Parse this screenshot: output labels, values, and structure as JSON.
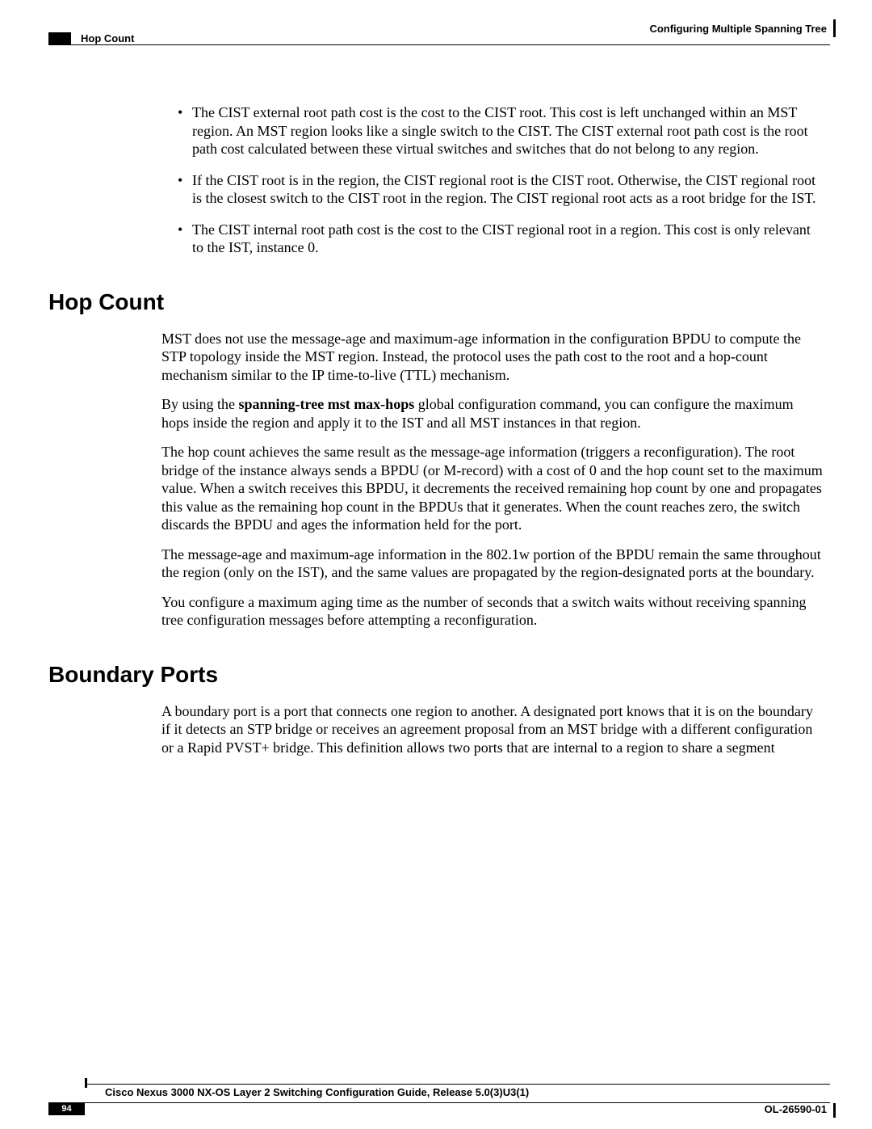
{
  "header": {
    "chapter": "Configuring Multiple Spanning Tree",
    "section": "Hop Count"
  },
  "bullets": [
    "The CIST external root path cost is the cost to the CIST root. This cost is left unchanged within an MST region. An MST region looks like a single switch to the CIST. The CIST external root path cost is the root path cost calculated between these virtual switches and switches that do not belong to any region.",
    "If the CIST root is in the region, the CIST regional root is the CIST root. Otherwise, the CIST regional root is the closest switch to the CIST root in the region. The CIST regional root acts as a root bridge for the IST.",
    "The CIST internal root path cost is the cost to the CIST regional root in a region. This cost is only relevant to the IST, instance 0."
  ],
  "sections": {
    "hop": {
      "title": "Hop Count",
      "p1": "MST does not use the message-age and maximum-age information in the configuration BPDU to compute the STP topology inside the MST region. Instead, the protocol uses the path cost to the root and a hop-count mechanism similar to the IP time-to-live (TTL) mechanism.",
      "p2_pre": "By using the ",
      "p2_bold": "spanning-tree mst max-hops",
      "p2_post": " global configuration command, you can configure the maximum hops inside the region and apply it to the IST and all MST instances in that region.",
      "p3": "The hop count achieves the same result as the message-age information (triggers a reconfiguration). The root bridge of the instance always sends a BPDU (or M-record) with a cost of 0 and the hop count set to the maximum value. When a switch receives this BPDU, it decrements the received remaining hop count by one and propagates this value as the remaining hop count in the BPDUs that it generates. When the count reaches zero, the switch discards the BPDU and ages the information held for the port.",
      "p4": "The message-age and maximum-age information in the 802.1w portion of the BPDU remain the same throughout the region (only on the IST), and the same values are propagated by the region-designated ports at the boundary.",
      "p5": "You configure a maximum aging time as the number of seconds that a switch waits without receiving spanning tree configuration messages before attempting a reconfiguration."
    },
    "boundary": {
      "title": "Boundary Ports",
      "p1": "A boundary port is a port that connects one region to another. A designated port knows that it is on the boundary if it detects an STP bridge or receives an agreement proposal from an MST bridge with a different configuration or a Rapid PVST+ bridge. This definition allows two ports that are internal to a region to share a segment"
    }
  },
  "footer": {
    "guide": "Cisco Nexus 3000 NX-OS Layer 2 Switching Configuration Guide, Release 5.0(3)U3(1)",
    "page": "94",
    "doc": "OL-26590-01"
  }
}
